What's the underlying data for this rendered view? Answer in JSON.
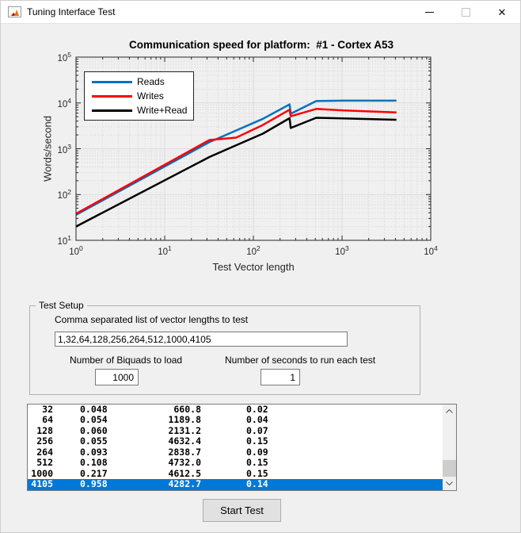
{
  "window": {
    "title": "Tuning Interface Test"
  },
  "icons": {
    "close": "✕"
  },
  "chart_data": {
    "type": "line",
    "title": "Communication speed for platform:  #1 - Cortex A53",
    "xlabel": "Test Vector length",
    "ylabel": "Words/second",
    "x_scale": "log",
    "y_scale": "log",
    "xlim": [
      1,
      10000
    ],
    "ylim": [
      10,
      100000
    ],
    "grid": true,
    "minor_grid": true,
    "legend_position": "top-left",
    "x": [
      1,
      32,
      64,
      128,
      256,
      264,
      512,
      1000,
      4105
    ],
    "series": [
      {
        "name": "Reads",
        "color": "#0072bd",
        "values": [
          36,
          1400,
          2500,
          4500,
          9300,
          5800,
          11000,
          11200,
          11200
        ]
      },
      {
        "name": "Writes",
        "color": "#ff0000",
        "values": [
          38,
          1550,
          1750,
          3300,
          7100,
          5100,
          7400,
          6900,
          6200
        ]
      },
      {
        "name": "Write+Read",
        "color": "#000000",
        "values": [
          20,
          660.8,
          1189.8,
          2131.2,
          4632.4,
          2838.7,
          4732.0,
          4612.5,
          4282.7
        ]
      }
    ]
  },
  "test_setup": {
    "group_label": "Test Setup",
    "vector_list_label": "Comma separated list of vector lengths to test",
    "vector_list_value": "1,32,64,128,256,264,512,1000,4105",
    "biquads_label": "Number of Biquads to load",
    "biquads_value": "1000",
    "seconds_label": "Number of seconds to run each test",
    "seconds_value": "1"
  },
  "results": {
    "rows": [
      [
        "32",
        "0.048",
        "660.8",
        "0.02"
      ],
      [
        "64",
        "0.054",
        "1189.8",
        "0.04"
      ],
      [
        "128",
        "0.060",
        "2131.2",
        "0.07"
      ],
      [
        "256",
        "0.055",
        "4632.4",
        "0.15"
      ],
      [
        "264",
        "0.093",
        "2838.7",
        "0.09"
      ],
      [
        "512",
        "0.108",
        "4732.0",
        "0.15"
      ],
      [
        "1000",
        "0.217",
        "4612.5",
        "0.15"
      ],
      [
        "4105",
        "0.958",
        "4282.7",
        "0.14"
      ]
    ],
    "selected_index": 7
  },
  "start_button_label": "Start Test"
}
